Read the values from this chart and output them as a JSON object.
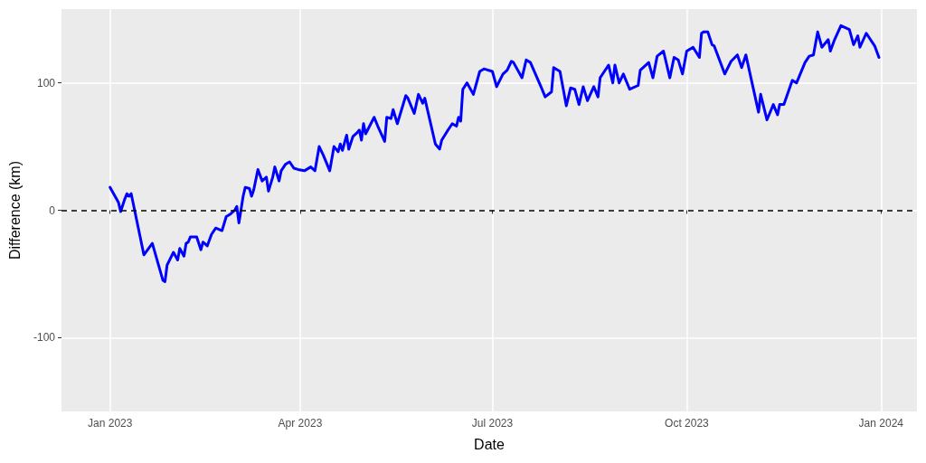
{
  "chart_data": {
    "type": "line",
    "xlabel": "Date",
    "ylabel": "Difference (km)",
    "x": [
      "2023-01-01",
      "2023-01-04",
      "2023-01-05",
      "2023-01-06",
      "2023-01-08",
      "2023-01-09",
      "2023-01-10",
      "2023-01-11",
      "2023-01-17",
      "2023-01-21",
      "2023-01-26",
      "2023-01-27",
      "2023-01-28",
      "2023-01-31",
      "2023-02-02",
      "2023-02-03",
      "2023-02-05",
      "2023-02-06",
      "2023-02-07",
      "2023-02-08",
      "2023-02-11",
      "2023-02-13",
      "2023-02-14",
      "2023-02-16",
      "2023-02-18",
      "2023-02-20",
      "2023-02-23",
      "2023-02-25",
      "2023-02-27",
      "2023-03-01",
      "2023-03-02",
      "2023-03-03",
      "2023-03-05",
      "2023-03-06",
      "2023-03-08",
      "2023-03-09",
      "2023-03-10",
      "2023-03-12",
      "2023-03-14",
      "2023-03-16",
      "2023-03-17",
      "2023-03-19",
      "2023-03-20",
      "2023-03-22",
      "2023-03-23",
      "2023-03-25",
      "2023-03-27",
      "2023-03-29",
      "2023-03-31",
      "2023-04-03",
      "2023-04-06",
      "2023-04-08",
      "2023-04-10",
      "2023-04-12",
      "2023-04-15",
      "2023-04-17",
      "2023-04-19",
      "2023-04-20",
      "2023-04-21",
      "2023-04-23",
      "2023-04-24",
      "2023-04-26",
      "2023-04-28",
      "2023-04-29",
      "2023-04-30",
      "2023-05-01",
      "2023-05-02",
      "2023-05-06",
      "2023-05-08",
      "2023-05-11",
      "2023-05-12",
      "2023-05-14",
      "2023-05-15",
      "2023-05-17",
      "2023-05-21",
      "2023-05-22",
      "2023-05-25",
      "2023-05-27",
      "2023-05-29",
      "2023-05-30",
      "2023-06-04",
      "2023-06-06",
      "2023-06-07",
      "2023-06-10",
      "2023-06-12",
      "2023-06-14",
      "2023-06-15",
      "2023-06-16",
      "2023-06-17",
      "2023-06-19",
      "2023-06-22",
      "2023-06-25",
      "2023-06-27",
      "2023-07-01",
      "2023-07-03",
      "2023-07-06",
      "2023-07-08",
      "2023-07-10",
      "2023-07-11",
      "2023-07-15",
      "2023-07-17",
      "2023-07-19",
      "2023-07-24",
      "2023-07-26",
      "2023-07-29",
      "2023-07-30",
      "2023-08-02",
      "2023-08-05",
      "2023-08-07",
      "2023-08-09",
      "2023-08-11",
      "2023-08-13",
      "2023-08-15",
      "2023-08-18",
      "2023-08-20",
      "2023-08-21",
      "2023-08-25",
      "2023-08-27",
      "2023-08-28",
      "2023-08-30",
      "2023-09-01",
      "2023-09-04",
      "2023-09-08",
      "2023-09-09",
      "2023-09-13",
      "2023-09-15",
      "2023-09-17",
      "2023-09-20",
      "2023-09-23",
      "2023-09-25",
      "2023-09-27",
      "2023-09-29",
      "2023-10-01",
      "2023-10-04",
      "2023-10-07",
      "2023-10-08",
      "2023-10-09",
      "2023-10-11",
      "2023-10-13",
      "2023-10-14",
      "2023-10-19",
      "2023-10-22",
      "2023-10-25",
      "2023-10-27",
      "2023-10-29",
      "2023-11-04",
      "2023-11-05",
      "2023-11-08",
      "2023-11-11",
      "2023-11-13",
      "2023-11-14",
      "2023-11-16",
      "2023-11-20",
      "2023-11-22",
      "2023-11-26",
      "2023-11-28",
      "2023-11-30",
      "2023-12-02",
      "2023-12-04",
      "2023-12-07",
      "2023-12-08",
      "2023-12-10",
      "2023-12-13",
      "2023-12-17",
      "2023-12-19",
      "2023-12-21",
      "2023-12-22",
      "2023-12-25",
      "2023-12-29",
      "2023-12-31"
    ],
    "series": [
      {
        "color": "#0000ff",
        "values": [
          18,
          9,
          6,
          -1,
          9,
          13,
          11,
          13,
          -35,
          -26,
          -55,
          -56,
          -43,
          -33,
          -39,
          -30,
          -36,
          -26,
          -25,
          -21,
          -21,
          -31,
          -25,
          -28,
          -19,
          -14,
          -16,
          -5,
          -3,
          0,
          3,
          -10,
          11,
          18,
          17,
          11,
          16,
          32,
          23,
          26,
          15,
          26,
          34,
          23,
          31,
          36,
          38,
          33,
          32,
          31,
          34,
          31,
          50,
          43,
          31,
          50,
          46,
          52,
          47,
          59,
          48,
          58,
          61,
          63,
          55,
          68,
          60,
          73,
          65,
          54,
          73,
          72,
          79,
          68,
          90,
          88,
          76,
          91,
          84,
          88,
          52,
          48,
          55,
          63,
          68,
          66,
          73,
          70,
          95,
          100,
          91,
          109,
          111,
          109,
          97,
          107,
          110,
          117,
          116,
          104,
          118,
          116,
          97,
          89,
          93,
          112,
          109,
          82,
          96,
          95,
          83,
          97,
          86,
          97,
          89,
          104,
          114,
          100,
          114,
          100,
          107,
          95,
          98,
          110,
          116,
          104,
          121,
          125,
          104,
          120,
          118,
          107,
          125,
          128,
          120,
          139,
          140,
          140,
          130,
          129,
          107,
          117,
          122,
          112,
          122,
          77,
          91,
          71,
          83,
          75,
          83,
          83,
          102,
          100,
          116,
          121,
          122,
          140,
          128,
          134,
          125,
          134,
          145,
          142,
          130,
          137,
          128,
          139,
          129,
          120
        ]
      }
    ],
    "xlim": [
      "2022-12-09",
      "2024-01-18"
    ],
    "xticks": [
      {
        "value": "2023-01-01",
        "label": "Jan 2023"
      },
      {
        "value": "2023-04-01",
        "label": "Apr 2023"
      },
      {
        "value": "2023-07-01",
        "label": "Jul 2023"
      },
      {
        "value": "2023-10-01",
        "label": "Oct 2023"
      },
      {
        "value": "2024-01-01",
        "label": "Jan 2024"
      }
    ],
    "ylim": [
      -158,
      158
    ],
    "yticks": [
      -100,
      0,
      100
    ],
    "ref_lines": [
      {
        "axis": "y",
        "value": 0,
        "color": "#000000",
        "line_style": "dashed"
      }
    ],
    "grid": true,
    "line_style": "solid",
    "marker": "none"
  }
}
